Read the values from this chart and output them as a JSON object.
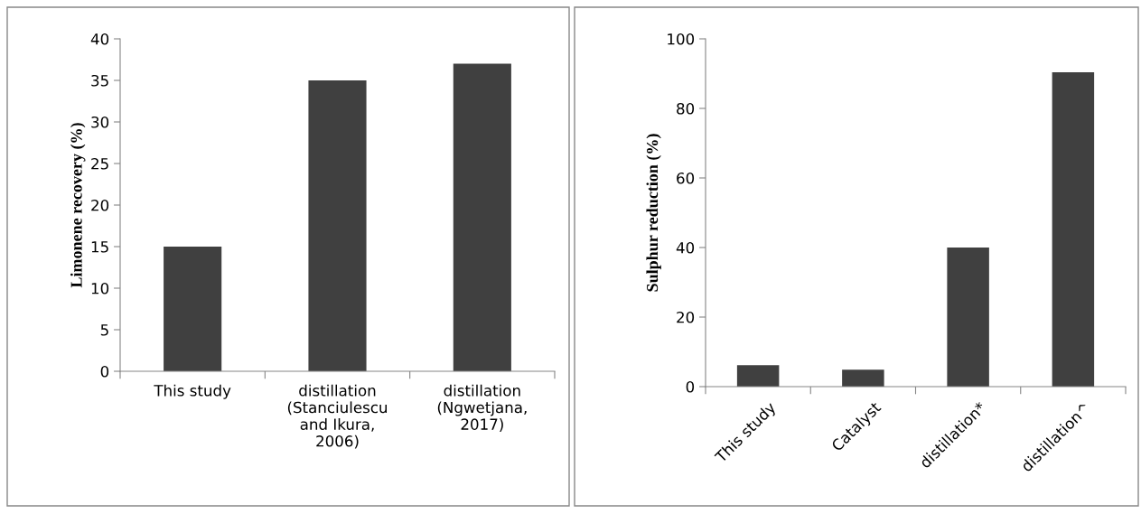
{
  "chart_data": [
    {
      "type": "bar",
      "ylabel": "Limonene recovery (%)",
      "categories": [
        "This study",
        "distillation\n(Stanciulescu\nand Ikura,\n2006)",
        "distillation\n(Ngwetjana,\n2017)"
      ],
      "values": [
        15,
        35,
        37.0
      ],
      "color": "#404040",
      "ylim": [
        0,
        40
      ],
      "yticks": [
        0,
        5,
        10,
        15,
        20,
        25,
        30,
        35,
        40
      ],
      "grid": false
    },
    {
      "type": "bar",
      "ylabel": "Sulphur reduction (%)",
      "categories": [
        "This study",
        "Catalyst",
        "distillation*",
        "distillation^"
      ],
      "values": [
        6.2,
        4.9,
        40,
        90.4
      ],
      "color": "#404040",
      "ylim": [
        0,
        100
      ],
      "yticks": [
        0,
        20,
        40,
        60,
        80,
        100
      ],
      "grid": false
    }
  ]
}
